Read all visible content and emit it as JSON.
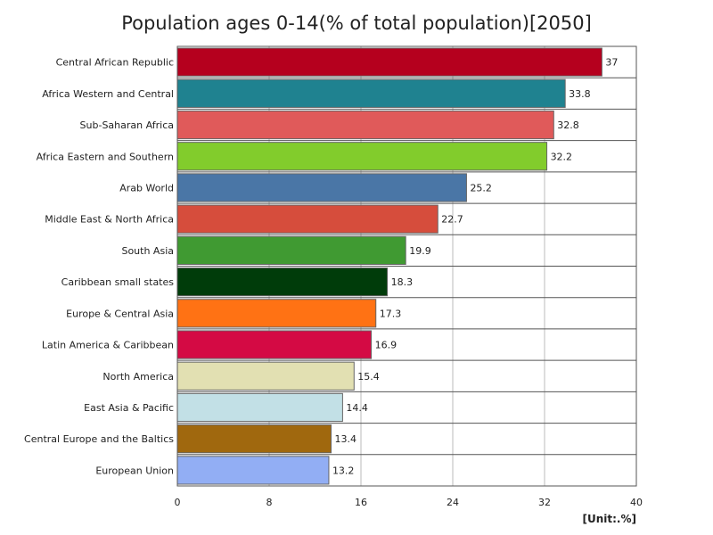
{
  "chart_data": {
    "type": "bar",
    "orientation": "horizontal",
    "title": "Population ages 0-14(% of total population)[2050]",
    "unit_label": "[Unit:.%]",
    "categories": [
      "Central African Republic",
      "Africa Western and Central",
      "Sub-Saharan Africa",
      "Africa Eastern and Southern",
      "Arab World",
      "Middle East & North Africa",
      "South Asia",
      "Caribbean small states",
      "Europe & Central Asia",
      "Latin America & Caribbean",
      "North America",
      "East Asia & Pacific",
      "Central Europe and the Baltics",
      "European Union"
    ],
    "values": [
      37,
      33.8,
      32.8,
      32.2,
      25.2,
      22.7,
      19.9,
      18.3,
      17.3,
      16.9,
      15.4,
      14.4,
      13.4,
      13.2
    ],
    "value_labels": [
      "37",
      "33.8",
      "32.8",
      "32.2",
      "25.2",
      "22.7",
      "19.9",
      "18.3",
      "17.3",
      "16.9",
      "15.4",
      "14.4",
      "13.4",
      "13.2"
    ],
    "colors": [
      "#b5001e",
      "#1f8290",
      "#e05a5a",
      "#82cc2c",
      "#4a76a6",
      "#d64d3c",
      "#409a32",
      "#003c0a",
      "#ff7214",
      "#d40a44",
      "#e2e0b2",
      "#c2e0e6",
      "#a0680e",
      "#92aef4"
    ],
    "xlim": [
      0,
      40
    ],
    "xticks": [
      "0",
      "8",
      "16",
      "24",
      "32",
      "40"
    ],
    "grid": true
  }
}
